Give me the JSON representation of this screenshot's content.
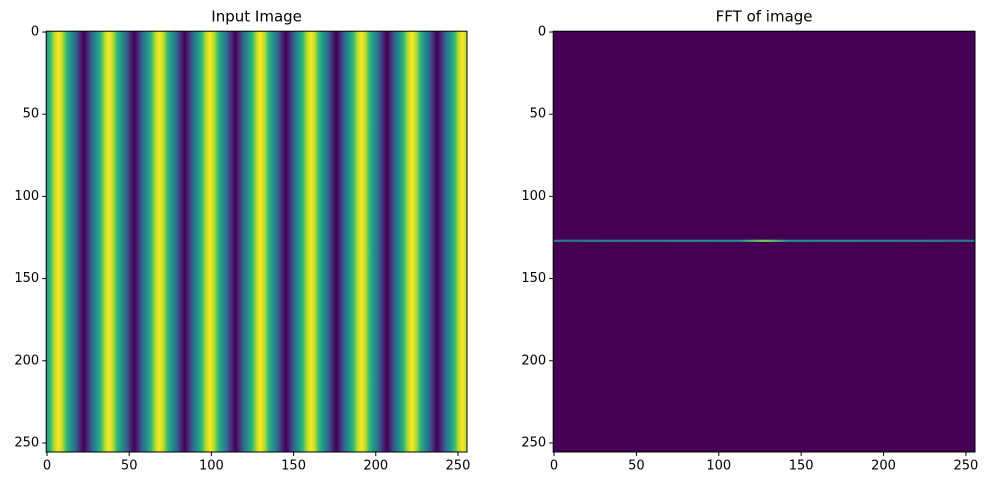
{
  "chart_data": [
    {
      "type": "image",
      "title": "Input Image",
      "xlim": [
        -0.5,
        255.5
      ],
      "ylim": [
        255.5,
        -0.5
      ],
      "xticks": [
        0,
        50,
        100,
        150,
        200,
        250
      ],
      "yticks": [
        0,
        50,
        100,
        150,
        200,
        250
      ]
    },
    {
      "type": "image",
      "title": "FFT of image",
      "xlim": [
        -0.5,
        255.5
      ],
      "ylim": [
        255.5,
        -0.5
      ],
      "xticks": [
        0,
        50,
        100,
        150,
        200,
        250
      ],
      "yticks": [
        0,
        50,
        100,
        150,
        200,
        250
      ]
    }
  ]
}
